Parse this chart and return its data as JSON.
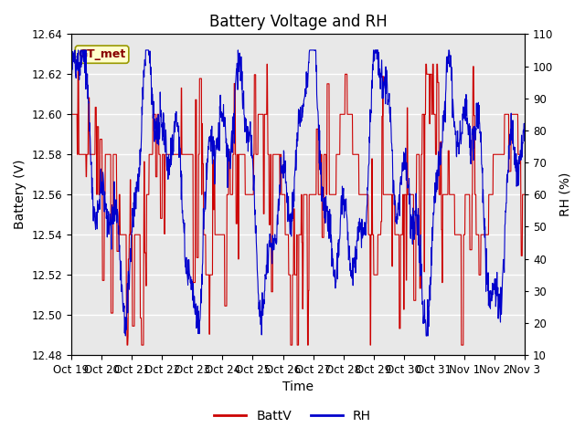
{
  "title": "Battery Voltage and RH",
  "xlabel": "Time",
  "ylabel_left": "Battery (V)",
  "ylabel_right": "RH (%)",
  "xlim_labels": [
    "Oct 19",
    "Oct 20",
    "Oct 21",
    "Oct 22",
    "Oct 23",
    "Oct 24",
    "Oct 25",
    "Oct 26",
    "Oct 27",
    "Oct 28",
    "Oct 29",
    "Oct 30",
    "Oct 31",
    "Nov 1",
    "Nov 2",
    "Nov 3"
  ],
  "ylim_left": [
    12.48,
    12.64
  ],
  "ylim_right": [
    10,
    110
  ],
  "yticks_left": [
    12.48,
    12.5,
    12.52,
    12.54,
    12.56,
    12.58,
    12.6,
    12.62,
    12.64
  ],
  "yticks_right": [
    10,
    20,
    30,
    40,
    50,
    60,
    70,
    80,
    90,
    100,
    110
  ],
  "color_battv": "#cc0000",
  "color_rh": "#0000cc",
  "annotation_text": "GT_met",
  "annotation_bg": "#ffffcc",
  "annotation_border": "#999900",
  "bg_color": "#e8e8e8",
  "legend_labels": [
    "BattV",
    "RH"
  ],
  "title_fontsize": 12,
  "axis_fontsize": 10,
  "tick_fontsize": 8.5
}
